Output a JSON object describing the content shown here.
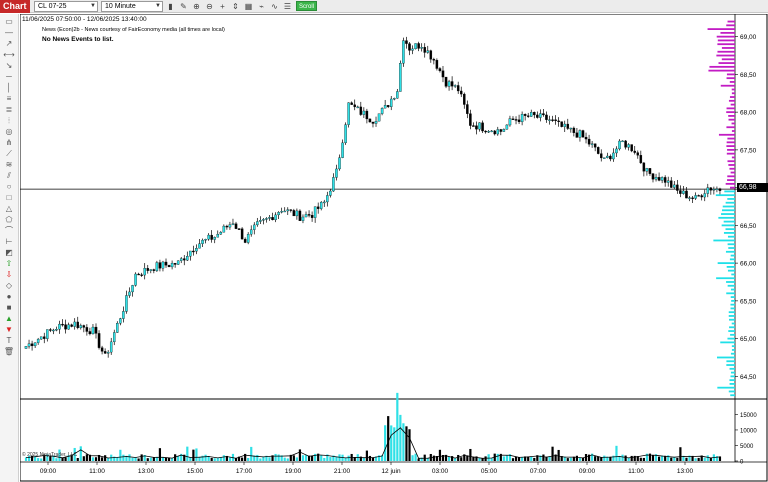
{
  "toolbar": {
    "tab_label": "Chart",
    "instrument": "CL 07-25",
    "interval": "10 Minute",
    "scroll_label": "Scroll",
    "icons": [
      "bar-type-icon",
      "pencil-icon",
      "zoom-in-icon",
      "zoom-out-icon",
      "crosshair-icon",
      "scale-icon",
      "properties-icon",
      "strategy-icon",
      "indicators-icon",
      "data-box-icon"
    ]
  },
  "header": {
    "date_range": "11/06/2025 07:50:00 - 12/06/2025 13:40:00",
    "news_source": "News (Econ)2b - News courtesy of FairEconomy media (all times are local)",
    "news_empty": "No News Events to list."
  },
  "copyright": "© 2025 NinjaTrader, LLC",
  "price_axis": {
    "labels": [
      "69,00",
      "68,50",
      "68,00",
      "67,50",
      "67,00",
      "66,50",
      "66,00",
      "65,50",
      "65,00",
      "64,50"
    ],
    "current_price": "66,98",
    "current_value": 66.98
  },
  "volume_axis": {
    "labels": [
      "15000",
      "10000",
      "5000",
      "0"
    ]
  },
  "time_axis": {
    "labels": [
      "09:00",
      "11:00",
      "13:00",
      "15:00",
      "17:00",
      "19:00",
      "21:00",
      "12 juin",
      "03:00",
      "05:00",
      "07:00",
      "09:00",
      "11:00",
      "13:00"
    ]
  },
  "colors": {
    "up": "#2fe0e6",
    "down": "#000000",
    "profile_above": "#c21bc4",
    "profile_below": "#1fe0e8",
    "tab": "#c62828",
    "scroll": "#3bb54a"
  },
  "chart_data": {
    "type": "candlestick",
    "interval": "10 Minute",
    "ylim": [
      64.2,
      69.3
    ],
    "anchors": [
      [
        0,
        64.9
      ],
      [
        10,
        65.15
      ],
      [
        16,
        65.2
      ],
      [
        22,
        65.1
      ],
      [
        26,
        64.75
      ],
      [
        32,
        65.4
      ],
      [
        36,
        65.85
      ],
      [
        42,
        65.95
      ],
      [
        50,
        66.0
      ],
      [
        56,
        66.25
      ],
      [
        62,
        66.35
      ],
      [
        68,
        66.55
      ],
      [
        72,
        66.3
      ],
      [
        76,
        66.5
      ],
      [
        80,
        66.6
      ],
      [
        84,
        66.72
      ],
      [
        90,
        66.62
      ],
      [
        94,
        66.65
      ],
      [
        98,
        66.8
      ],
      [
        102,
        67.2
      ],
      [
        106,
        68.1
      ],
      [
        110,
        68.0
      ],
      [
        114,
        67.9
      ],
      [
        118,
        68.05
      ],
      [
        122,
        68.3
      ],
      [
        124,
        69.0
      ],
      [
        126,
        68.85
      ],
      [
        130,
        68.9
      ],
      [
        134,
        68.7
      ],
      [
        138,
        68.4
      ],
      [
        142,
        68.3
      ],
      [
        146,
        67.85
      ],
      [
        150,
        67.8
      ],
      [
        156,
        67.75
      ],
      [
        160,
        67.9
      ],
      [
        166,
        67.95
      ],
      [
        172,
        67.9
      ],
      [
        176,
        67.8
      ],
      [
        182,
        67.7
      ],
      [
        186,
        67.55
      ],
      [
        190,
        67.35
      ],
      [
        196,
        67.6
      ],
      [
        200,
        67.5
      ],
      [
        204,
        67.2
      ],
      [
        210,
        67.1
      ],
      [
        214,
        66.95
      ],
      [
        220,
        66.85
      ],
      [
        224,
        67.0
      ],
      [
        228,
        66.98
      ]
    ],
    "volume_ylim": [
      0,
      19000
    ]
  }
}
